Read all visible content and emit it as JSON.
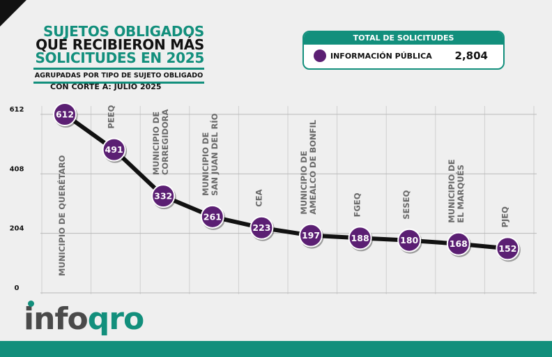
{
  "title": {
    "line1": "SUJETOS OBLIGADOS",
    "line2": "QUE RECIBIERON MÁS",
    "line3": "SOLICITUDES EN 2025",
    "subtitle": "AGRUPADAS POR TIPO DE SUJETO OBLIGADO"
  },
  "corte": "CON CORTE A: JULIO 2025",
  "total": {
    "header": "TOTAL DE SOLICITUDES",
    "label": "INFORMACIÓN PÚBLICA",
    "value": "2,804"
  },
  "logo": {
    "text_main": "info",
    "text_accent": "qro"
  },
  "colors": {
    "accent": "#128f7c",
    "marker": "#5b1f73",
    "line": "#111111"
  },
  "chart_data": {
    "type": "line",
    "title": "",
    "xlabel": "",
    "ylabel": "",
    "ylim": [
      0,
      612
    ],
    "yticks": [
      "0",
      "204",
      "408",
      "612"
    ],
    "grid": true,
    "categories": [
      [
        "MUNICIPIO DE QUERÉTARO"
      ],
      [
        "PEEQ"
      ],
      [
        "MUNICIPIO DE",
        "CORREGIDORA"
      ],
      [
        "MUNICIPIO DE",
        "SAN JUAN DEL RÍO"
      ],
      [
        "CEA"
      ],
      [
        "MUNICIPIO DE",
        "AMEALCO DE BONFIL"
      ],
      [
        "FGEQ"
      ],
      [
        "SESEQ"
      ],
      [
        "MUNICIPIO DE",
        "EL MARQUÉS"
      ],
      [
        "PJEQ"
      ]
    ],
    "values": [
      612,
      491,
      332,
      261,
      223,
      197,
      188,
      180,
      168,
      152
    ]
  }
}
